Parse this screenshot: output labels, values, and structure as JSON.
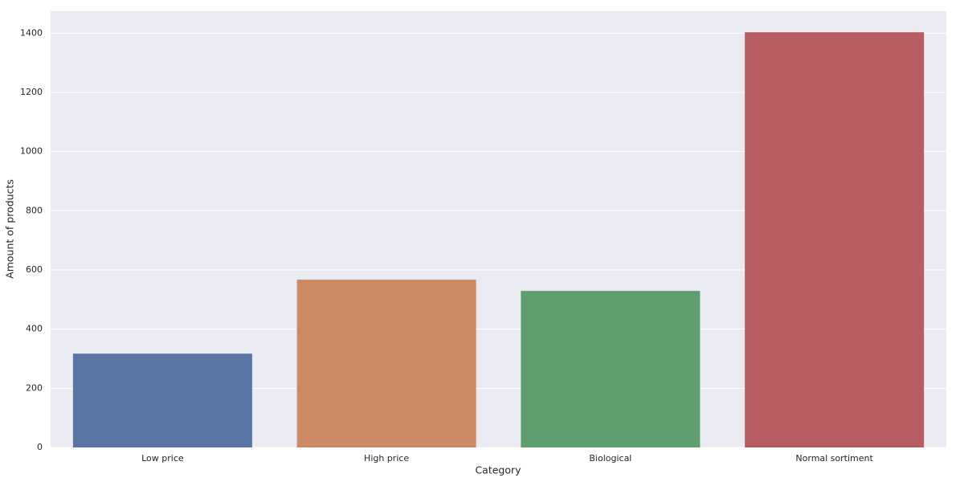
{
  "chart_data": {
    "type": "bar",
    "xlabel": "Category",
    "ylabel": "Amount of products",
    "categories": [
      "Low price",
      "High price",
      "Biological",
      "Normal sortiment"
    ],
    "values": [
      317,
      567,
      529,
      1403
    ],
    "colors": [
      "#5975a4",
      "#cc8963",
      "#5f9e6e",
      "#b55d60"
    ],
    "ylim": [
      0,
      1474
    ],
    "yticks": [
      0,
      200,
      400,
      600,
      800,
      1000,
      1200,
      1400
    ],
    "grid": true
  }
}
